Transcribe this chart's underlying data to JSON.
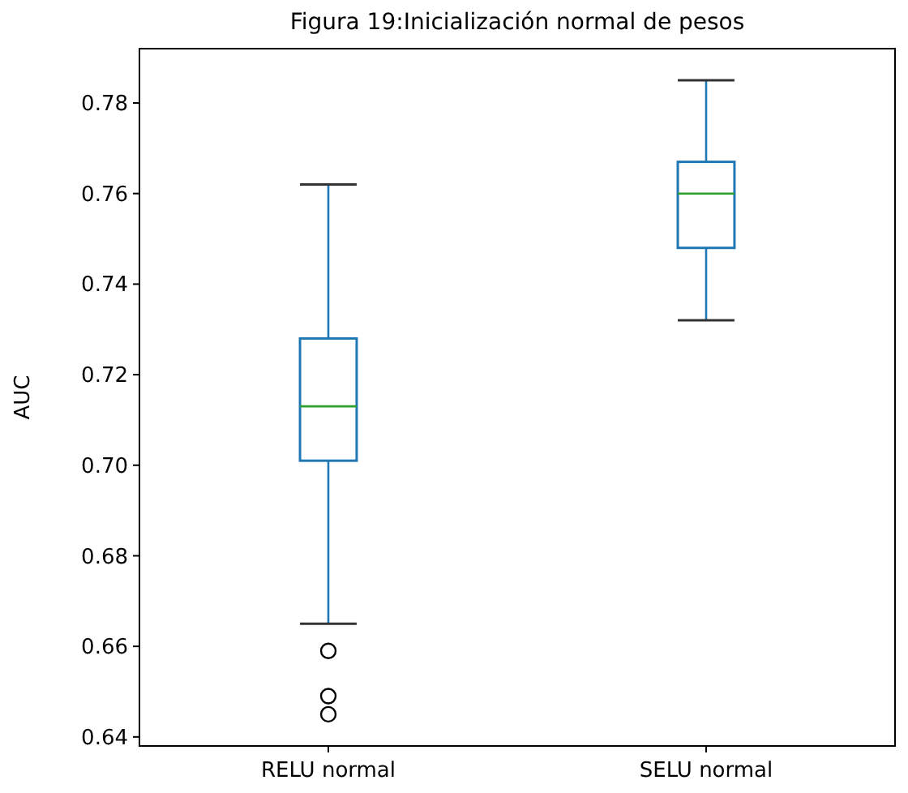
{
  "chart_data": {
    "type": "box",
    "title": "Figura 19:Inicialización normal de pesos",
    "ylabel": "AUC",
    "categories": [
      "RELU normal",
      "SELU normal"
    ],
    "boxes": [
      {
        "low": 0.665,
        "q1": 0.701,
        "median": 0.713,
        "q3": 0.728,
        "high": 0.762,
        "outliers": [
          0.659,
          0.649,
          0.645
        ]
      },
      {
        "low": 0.732,
        "q1": 0.748,
        "median": 0.76,
        "q3": 0.767,
        "high": 0.785
      }
    ],
    "color": "#1f77b4",
    "ylim": [
      0.638,
      0.792
    ],
    "yticks": [
      0.64,
      0.66,
      0.68,
      {
        "value": 0.7,
        "label": "0.70"
      },
      0.72,
      0.74,
      0.76,
      0.78
    ],
    "grid": false
  }
}
